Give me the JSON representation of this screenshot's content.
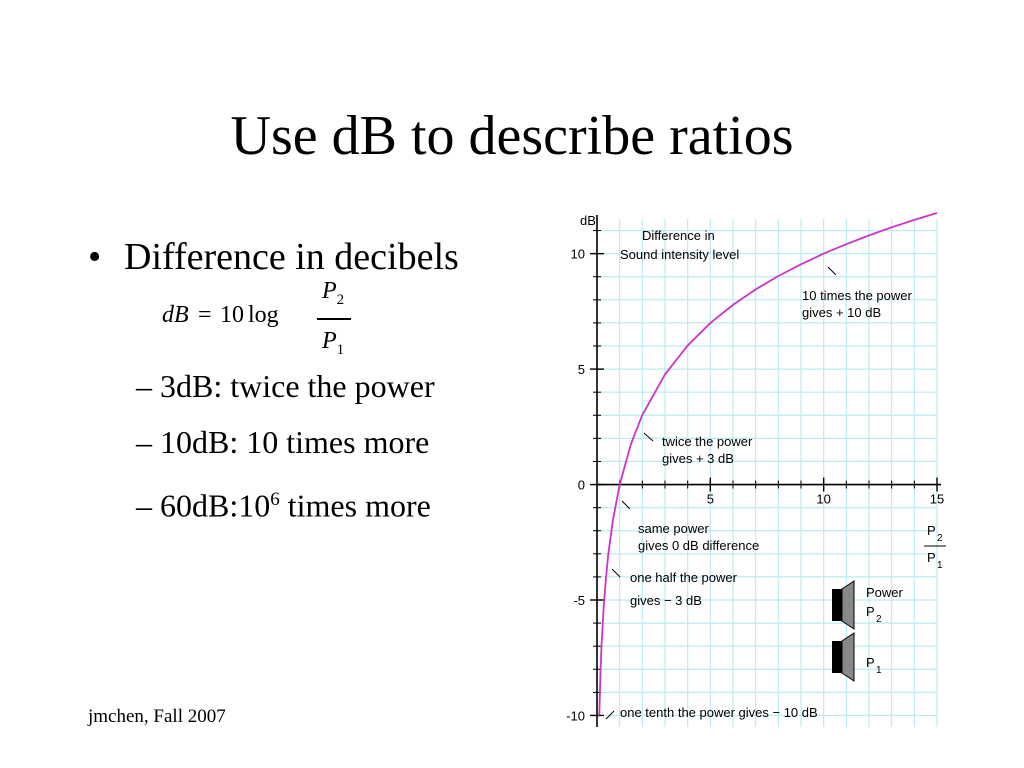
{
  "slide": {
    "title": "Use dB to describe ratios",
    "bullet": "Difference in decibels",
    "bullet_marker": "•",
    "formula": {
      "lhs": "dB",
      "eq": "=",
      "coef": "10",
      "func": "log",
      "num_var": "P",
      "num_sub": "2",
      "den_var": "P",
      "den_sub": "1"
    },
    "subpoints": [
      {
        "text": "– 3dB: twice the power"
      },
      {
        "text": "– 10dB: 10 times more"
      },
      {
        "base": "– 60dB:10",
        "sup": "6",
        "tail": " times more"
      }
    ],
    "footer": "jmchen, Fall 2007"
  },
  "chart_data": {
    "type": "line",
    "function": "10*log10(x)",
    "ylabel": "dB",
    "x_ticks": [
      5,
      10,
      15
    ],
    "y_ticks": [
      -10,
      -5,
      0,
      5,
      10
    ],
    "xlim": [
      0,
      15
    ],
    "ylim": [
      -10.5,
      11.5
    ],
    "grid": true,
    "series": [
      {
        "x": [
          0.1,
          0.15,
          0.2,
          0.3,
          0.4,
          0.5,
          0.7,
          1,
          1.5,
          2,
          3,
          4,
          5,
          6,
          7,
          8,
          9,
          10,
          11,
          12,
          13,
          14,
          15
        ],
        "values": [
          -10,
          -8.24,
          -6.99,
          -5.23,
          -3.98,
          -3.01,
          -1.55,
          0,
          1.76,
          3.01,
          4.77,
          6.02,
          6.99,
          7.78,
          8.45,
          9.03,
          9.54,
          10,
          10.41,
          10.79,
          11.14,
          11.46,
          11.76
        ]
      }
    ],
    "x_axis_label": {
      "num": "P",
      "num_sub": "2",
      "den": "P",
      "den_sub": "1"
    },
    "annotations": [
      "Difference in",
      "Sound intensity level",
      "10 times the power",
      "gives + 10 dB",
      "twice the power",
      "gives + 3 dB",
      "same power",
      "gives 0 dB difference",
      "one half the power",
      "gives − 3 dB",
      "one tenth the power gives  − 10 dB"
    ],
    "legend": {
      "power_label": "Power",
      "p2": "P",
      "p2_sub": "2",
      "p1": "P",
      "p1_sub": "1"
    },
    "colors": {
      "curve": "#cc33cc",
      "grid": "#b8ecf4",
      "axis": "#000000"
    }
  }
}
